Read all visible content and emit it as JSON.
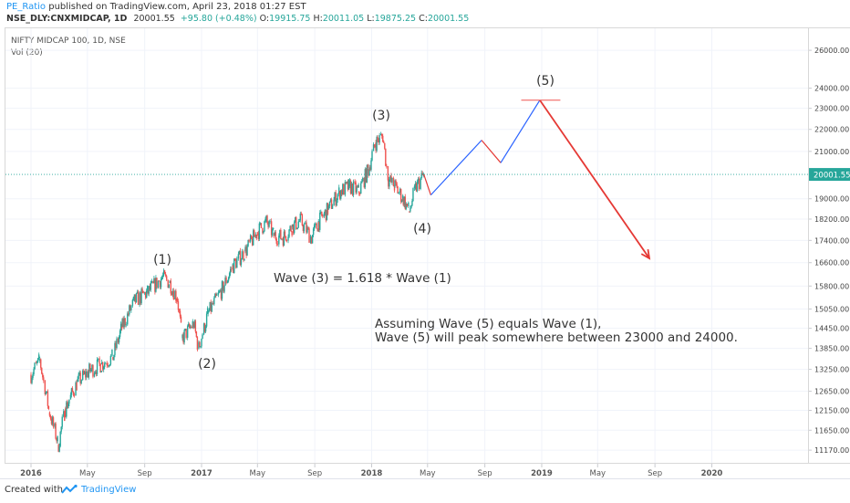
{
  "header": {
    "author": "PE_Ratio",
    "published_text": "published on TradingView.com, April 23, 2018 01:27 EST",
    "symbol": "NSE_DLY:CNXMIDCAP, 1D",
    "last": "20001.55",
    "change": "+95.80 (+0.48%)",
    "o_label": "O:",
    "o_value": "19915.75",
    "h_label": "H:",
    "h_value": "20011.05",
    "l_label": "L:",
    "l_value": "19875.25",
    "c_label": "C:",
    "c_value": "20001.55"
  },
  "legend": {
    "title": "NIFTY MIDCAP 100, 1D, NSE",
    "volume": "Vol (20)"
  },
  "footer": {
    "created_with": "Created with",
    "brand": "TradingView"
  },
  "colors": {
    "up": "#26a69a",
    "down": "#ef5350",
    "projection_up": "#2962ff",
    "projection_down": "#e53935",
    "price_line": "#26a69a",
    "target_line": "#ef5350"
  },
  "chart_data": {
    "type": "candlestick",
    "y_scale": "log",
    "price_ticks": [
      "26000.00",
      "24000.00",
      "23000.00",
      "22000.00",
      "21000.00",
      "20001.55",
      "19000.00",
      "18200.00",
      "17400.00",
      "16600.00",
      "15800.00",
      "15050.00",
      "14450.00",
      "13850.00",
      "13250.00",
      "12650.00",
      "12150.00",
      "11650.00",
      "11170.00"
    ],
    "time_ticks": [
      "2016",
      "May",
      "Sep",
      "2017",
      "May",
      "Sep",
      "2018",
      "May",
      "Sep",
      "2019",
      "May",
      "Sep",
      "2020"
    ],
    "last_price": 20001.55,
    "wave_labels": [
      "(1)",
      "(2)",
      "(3)",
      "(4)",
      "(5)"
    ],
    "annotations": [
      "Wave (3) = 1.618 * Wave (1)",
      "Assuming Wave (5) equals Wave (1),",
      "Wave (5) will peak somewhere between 23000 and 24000."
    ],
    "price_path": [
      {
        "date": "2016-01-01",
        "price": 13100
      },
      {
        "date": "2016-01-20",
        "price": 13500
      },
      {
        "date": "2016-02-10",
        "price": 12100
      },
      {
        "date": "2016-02-29",
        "price": 11300
      },
      {
        "date": "2016-03-15",
        "price": 12200
      },
      {
        "date": "2016-04-10",
        "price": 12900
      },
      {
        "date": "2016-05-05",
        "price": 13200
      },
      {
        "date": "2016-06-01",
        "price": 13400
      },
      {
        "date": "2016-06-25",
        "price": 13600
      },
      {
        "date": "2016-07-15",
        "price": 14500
      },
      {
        "date": "2016-08-10",
        "price": 15300
      },
      {
        "date": "2016-09-08",
        "price": 15600
      },
      {
        "date": "2016-10-10",
        "price": 16100
      },
      {
        "date": "2016-10-25",
        "price": 15900
      },
      {
        "date": "2016-11-10",
        "price": 15400
      },
      {
        "date": "2016-11-21",
        "price": 14150
      },
      {
        "date": "2016-12-15",
        "price": 14600
      },
      {
        "date": "2016-12-26",
        "price": 13850
      },
      {
        "date": "2017-01-15",
        "price": 14900
      },
      {
        "date": "2017-02-15",
        "price": 15700
      },
      {
        "date": "2017-03-10",
        "price": 16500
      },
      {
        "date": "2017-04-05",
        "price": 17000
      },
      {
        "date": "2017-05-01",
        "price": 17700
      },
      {
        "date": "2017-05-20",
        "price": 18100
      },
      {
        "date": "2017-06-05",
        "price": 17600
      },
      {
        "date": "2017-06-25",
        "price": 17500
      },
      {
        "date": "2017-07-15",
        "price": 17900
      },
      {
        "date": "2017-08-01",
        "price": 18150
      },
      {
        "date": "2017-08-25",
        "price": 17500
      },
      {
        "date": "2017-09-10",
        "price": 18100
      },
      {
        "date": "2017-10-01",
        "price": 18600
      },
      {
        "date": "2017-10-25",
        "price": 19300
      },
      {
        "date": "2017-11-15",
        "price": 19500
      },
      {
        "date": "2017-12-05",
        "price": 19300
      },
      {
        "date": "2017-12-25",
        "price": 20200
      },
      {
        "date": "2018-01-10",
        "price": 21400
      },
      {
        "date": "2018-01-25",
        "price": 21700
      },
      {
        "date": "2018-02-06",
        "price": 19800
      },
      {
        "date": "2018-02-20",
        "price": 19500
      },
      {
        "date": "2018-03-10",
        "price": 19000
      },
      {
        "date": "2018-03-23",
        "price": 18500
      },
      {
        "date": "2018-04-05",
        "price": 19400
      },
      {
        "date": "2018-04-23",
        "price": 20001.55
      }
    ],
    "projection": [
      {
        "date": "2018-04-23",
        "price": 20001.55,
        "dir": "down"
      },
      {
        "date": "2018-05-08",
        "price": 19150,
        "dir": "up"
      },
      {
        "date": "2018-08-25",
        "price": 21500,
        "dir": "down"
      },
      {
        "date": "2018-10-05",
        "price": 20500,
        "dir": "up"
      },
      {
        "date": "2018-12-28",
        "price": 23400,
        "dir": "down"
      },
      {
        "date": "2019-08-20",
        "price": 16750,
        "dir": "end"
      }
    ],
    "wave5_target_line": 23400
  }
}
